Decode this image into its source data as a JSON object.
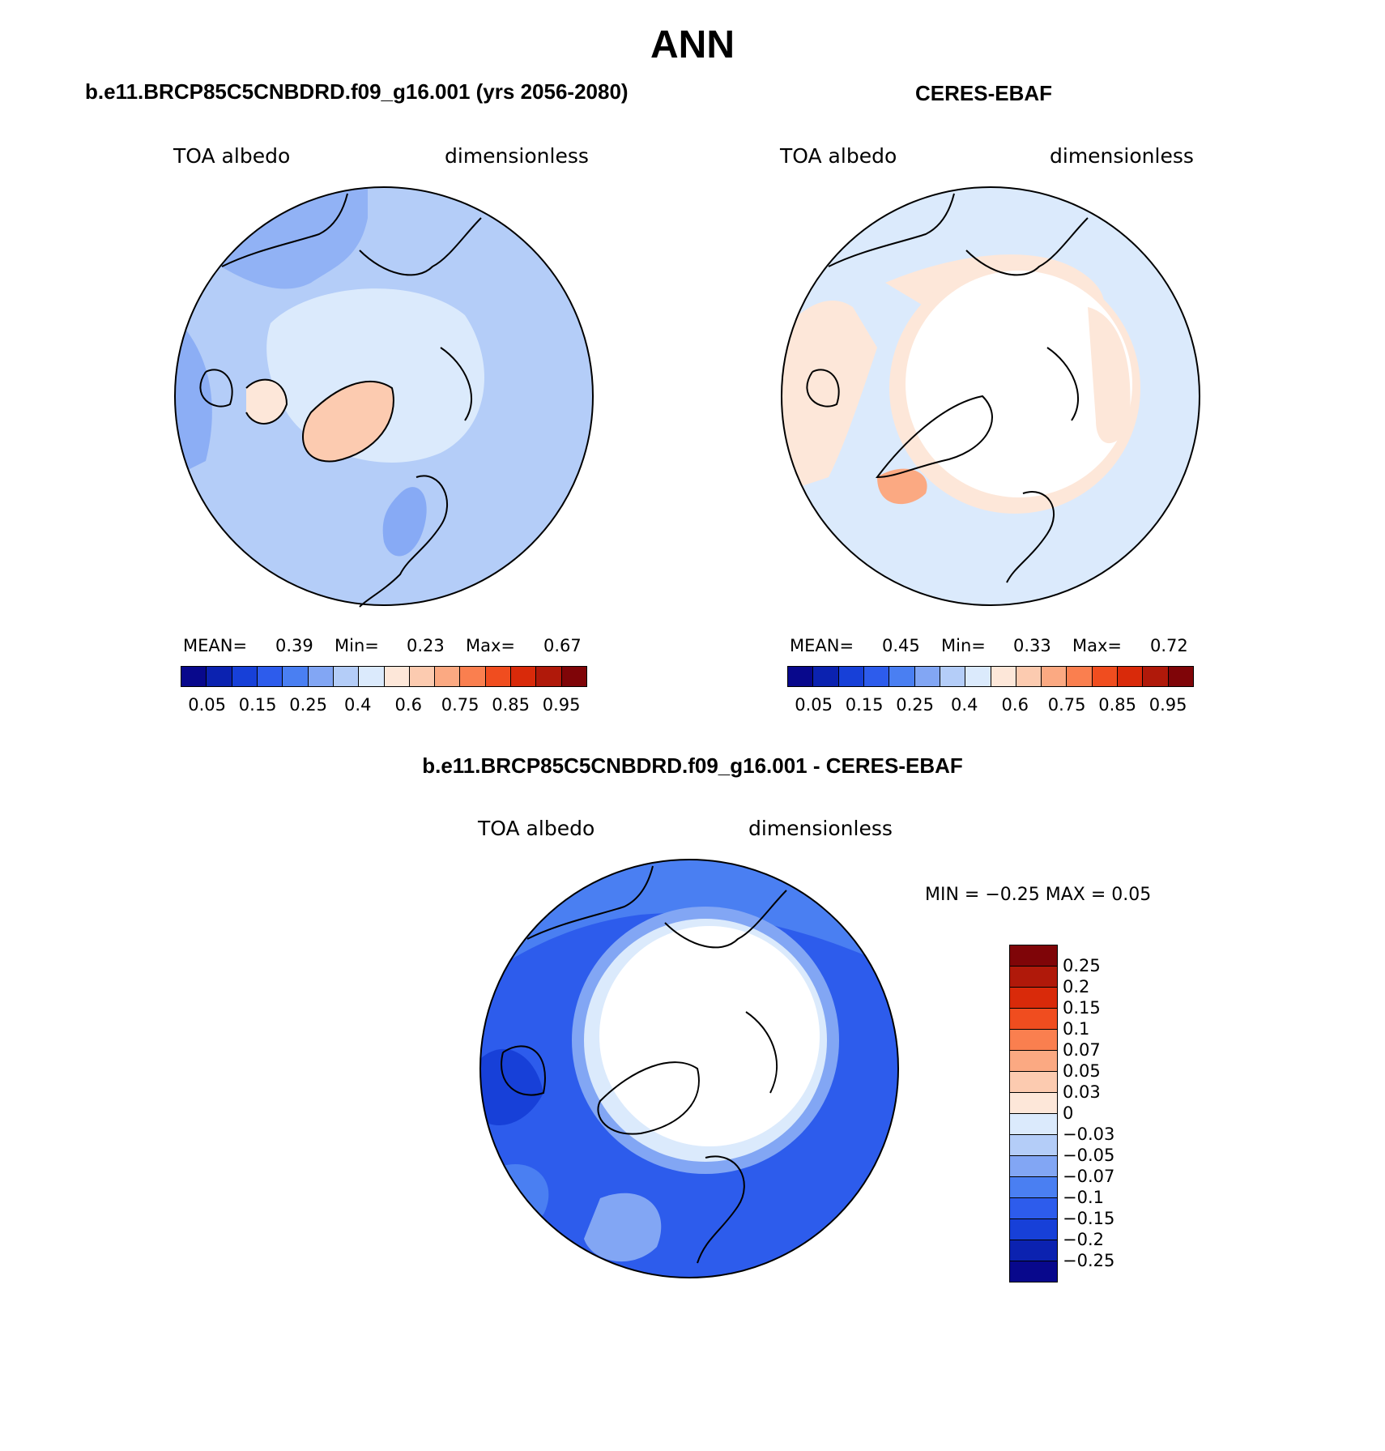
{
  "title": "ANN",
  "colors": {
    "scale": [
      "#08088c",
      "#0b22b0",
      "#1740d8",
      "#2d5cec",
      "#4a7ff2",
      "#82a6f4",
      "#b4cdf8",
      "#dbeafc",
      "#fde7d9",
      "#fccbb0",
      "#fba982",
      "#fa7f4f",
      "#f04d1f",
      "#d92a0a",
      "#b0190a",
      "#7f0508"
    ],
    "diff_scale": [
      "#7f0508",
      "#b0190a",
      "#d92a0a",
      "#f04d1f",
      "#fa7f4f",
      "#fba982",
      "#fccbb0",
      "#fde7d9",
      "#dbeafc",
      "#b4cdf8",
      "#82a6f4",
      "#4a7ff2",
      "#2d5cec",
      "#1740d8",
      "#0b22b0",
      "#08088c"
    ]
  },
  "panel_model": {
    "title": "b.e11.BRCP85C5CNBDRD.f09_g16.001 (yrs 2056-2080)",
    "variable": "TOA albedo",
    "units": "dimensionless",
    "stats": {
      "mean_label": "MEAN=",
      "mean": "0.39",
      "min_label": "Min=",
      "min": "0.23",
      "max_label": "Max=",
      "max": "0.67"
    }
  },
  "panel_obs": {
    "title": "CERES-EBAF",
    "variable": "TOA albedo",
    "units": "dimensionless",
    "stats": {
      "mean_label": "MEAN=",
      "mean": "0.45",
      "min_label": "Min=",
      "min": "0.33",
      "max_label": "Max=",
      "max": "0.72"
    }
  },
  "colorbar_labels": [
    "0.05",
    "0.15",
    "0.25",
    "0.4",
    "0.6",
    "0.75",
    "0.85",
    "0.95"
  ],
  "panel_diff": {
    "title": "b.e11.BRCP85C5CNBDRD.f09_g16.001 - CERES-EBAF",
    "variable": "TOA albedo",
    "units": "dimensionless",
    "stats_text": "MIN =   −0.25 MAX =     0.05",
    "colorbar_labels": [
      "0.25",
      "0.2",
      "0.15",
      "0.1",
      "0.07",
      "0.05",
      "0.03",
      "0",
      "−0.03",
      "−0.05",
      "−0.07",
      "−0.1",
      "−0.15",
      "−0.2",
      "−0.25"
    ]
  }
}
